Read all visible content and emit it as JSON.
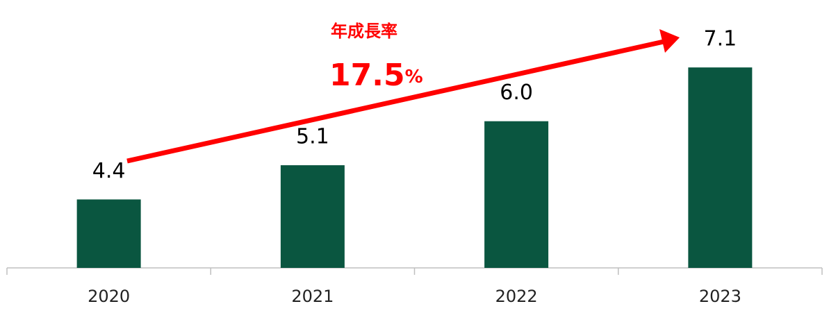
{
  "chart_data": {
    "type": "bar",
    "annotation_title": "年成長率",
    "annotation_value": "17.5",
    "annotation_unit": "%",
    "categories": [
      "2020",
      "2021",
      "2022",
      "2023"
    ],
    "values": [
      4.4,
      5.1,
      6.0,
      7.1
    ],
    "value_labels": [
      "4.4",
      "5.1",
      "6.0",
      "7.1"
    ],
    "color": "#0a5640",
    "arrow_color": "#ff0000",
    "ylim": [
      3,
      7.5
    ]
  }
}
